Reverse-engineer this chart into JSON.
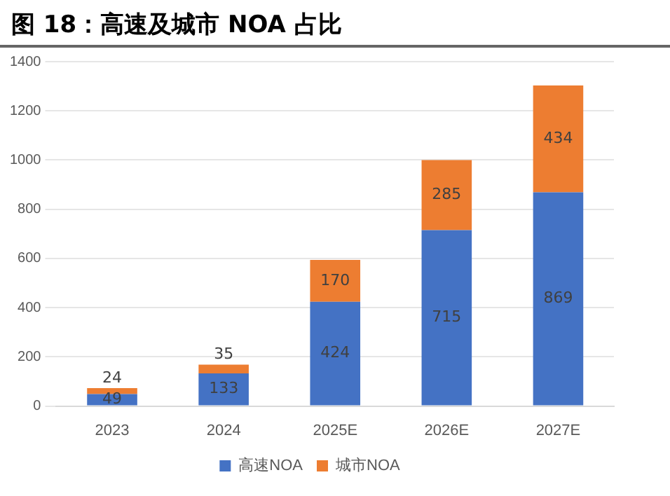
{
  "chart_data": {
    "type": "bar",
    "title": "图 18：高速及城市 NOA 占比",
    "categories": [
      "2023",
      "2024",
      "2025E",
      "2026E",
      "2027E"
    ],
    "stacked": true,
    "series": [
      {
        "name": "高速NOA",
        "color": "#4472c4",
        "values": [
          49,
          133,
          424,
          715,
          869
        ]
      },
      {
        "name": "城市NOA",
        "color": "#ed7d31",
        "values": [
          24,
          35,
          170,
          285,
          434
        ]
      }
    ],
    "ylim": [
      0,
      1400
    ],
    "yticks": [
      0,
      200,
      400,
      600,
      800,
      1000,
      1200,
      1400
    ],
    "grid": "y",
    "legend": "bottom",
    "data_labels": true
  }
}
